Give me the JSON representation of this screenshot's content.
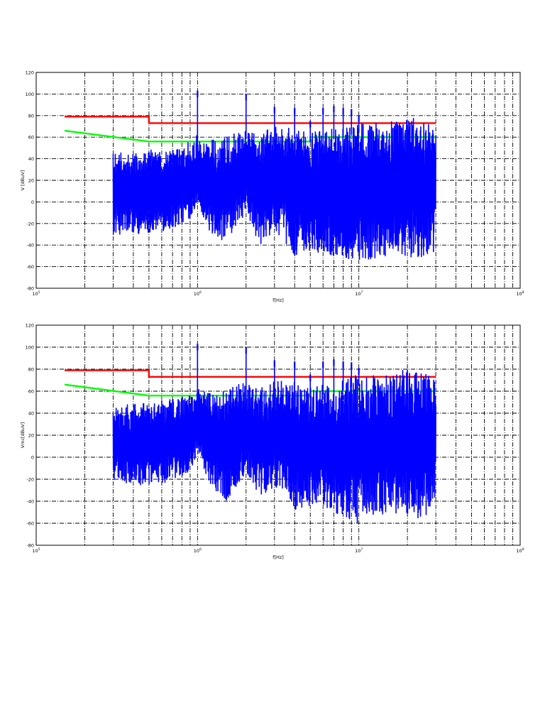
{
  "colors": {
    "measurement": "#0000ff",
    "limit_red": "#ff0000",
    "limit_green": "#00ff00",
    "grid": "#000000",
    "background": "#ffffff"
  },
  "chart_data": [
    {
      "type": "line",
      "xscale": "log",
      "xlabel": "f[Hz]",
      "ylabel": "V [dBuV]",
      "xlim": [
        100000,
        100000000
      ],
      "ylim": [
        -80,
        120
      ],
      "grid": true,
      "x_ticks": [
        {
          "base": "10",
          "exp": "5"
        },
        {
          "base": "10",
          "exp": "6"
        },
        {
          "base": "10",
          "exp": "7"
        },
        {
          "base": "10",
          "exp": "8"
        }
      ],
      "y_ticks": [
        "120",
        "100",
        "80",
        "60",
        "40",
        "20",
        "0",
        "-20",
        "-40",
        "-60",
        "-80"
      ],
      "series": [
        {
          "color": "limit_red",
          "x": [
            150000,
            500000,
            500000,
            30000000
          ],
          "y": [
            79,
            79,
            73,
            73
          ]
        },
        {
          "color": "limit_green",
          "x": [
            150000,
            500000,
            5000000,
            5000000,
            30000000
          ],
          "y": [
            66,
            56,
            56,
            60,
            60
          ]
        },
        {
          "color": "measurement",
          "kind": "dense_spectrum",
          "x_range": [
            300000,
            30000000
          ],
          "envelope_f": [
            300000,
            400000,
            500000,
            700000,
            900000,
            1000000,
            1200000,
            1500000,
            2000000,
            2500000,
            3000000,
            4000000,
            5000000,
            7000000,
            10000000,
            15000000,
            20000000,
            25000000,
            30000000
          ],
          "upper": [
            45,
            47,
            48,
            52,
            56,
            62,
            58,
            60,
            68,
            64,
            70,
            68,
            65,
            68,
            74,
            75,
            78,
            77,
            68
          ],
          "lower": [
            -30,
            -30,
            -28,
            -26,
            -15,
            0,
            -30,
            -38,
            -10,
            -45,
            -25,
            -50,
            -45,
            -50,
            -55,
            -50,
            -50,
            -55,
            -45
          ],
          "peaks": [
            {
              "f": 1000000,
              "y": 103
            },
            {
              "f": 2000000,
              "y": 100
            },
            {
              "f": 3000000,
              "y": 88
            },
            {
              "f": 4000000,
              "y": 87
            },
            {
              "f": 5000000,
              "y": 75
            },
            {
              "f": 6000000,
              "y": 87
            },
            {
              "f": 7000000,
              "y": 89
            },
            {
              "f": 8000000,
              "y": 87
            },
            {
              "f": 9000000,
              "y": 86
            },
            {
              "f": 10000000,
              "y": 80
            }
          ]
        }
      ]
    },
    {
      "type": "line",
      "xscale": "log",
      "xlabel": "f[Hz]",
      "ylabel": "Vmc[dBuV]",
      "xlim": [
        100000,
        100000000
      ],
      "ylim": [
        -80,
        120
      ],
      "grid": true,
      "x_ticks": [
        {
          "base": "10",
          "exp": "5"
        },
        {
          "base": "10",
          "exp": "6"
        },
        {
          "base": "10",
          "exp": "7"
        },
        {
          "base": "10",
          "exp": "8"
        }
      ],
      "y_ticks": [
        "120",
        "100",
        "80",
        "60",
        "40",
        "20",
        "0",
        "-20",
        "-40",
        "-60",
        "-80"
      ],
      "series": [
        {
          "color": "limit_red",
          "x": [
            150000,
            500000,
            500000,
            30000000
          ],
          "y": [
            79,
            79,
            73,
            73
          ]
        },
        {
          "color": "limit_green",
          "x": [
            150000,
            500000,
            5000000,
            5000000,
            30000000
          ],
          "y": [
            66,
            56,
            56,
            60,
            60
          ]
        },
        {
          "color": "measurement",
          "kind": "dense_spectrum",
          "x_range": [
            300000,
            30000000
          ],
          "envelope_f": [
            300000,
            400000,
            500000,
            700000,
            900000,
            1000000,
            1200000,
            1500000,
            2000000,
            2500000,
            3000000,
            4000000,
            5000000,
            7000000,
            10000000,
            15000000,
            20000000,
            25000000,
            30000000
          ],
          "upper": [
            47,
            48,
            50,
            53,
            57,
            62,
            58,
            61,
            69,
            63,
            70,
            68,
            64,
            69,
            75,
            76,
            80,
            82,
            68
          ],
          "lower": [
            -22,
            -25,
            -25,
            -22,
            -12,
            0,
            -25,
            -40,
            -15,
            -40,
            -25,
            -48,
            -45,
            -50,
            -60,
            -50,
            -52,
            -62,
            -40
          ],
          "peaks": [
            {
              "f": 1000000,
              "y": 103
            },
            {
              "f": 2000000,
              "y": 100
            },
            {
              "f": 3000000,
              "y": 88
            },
            {
              "f": 4000000,
              "y": 87
            },
            {
              "f": 5000000,
              "y": 75
            },
            {
              "f": 6000000,
              "y": 87
            },
            {
              "f": 7000000,
              "y": 89
            },
            {
              "f": 8000000,
              "y": 87
            },
            {
              "f": 9000000,
              "y": 86
            },
            {
              "f": 10000000,
              "y": 81
            }
          ]
        }
      ]
    }
  ]
}
